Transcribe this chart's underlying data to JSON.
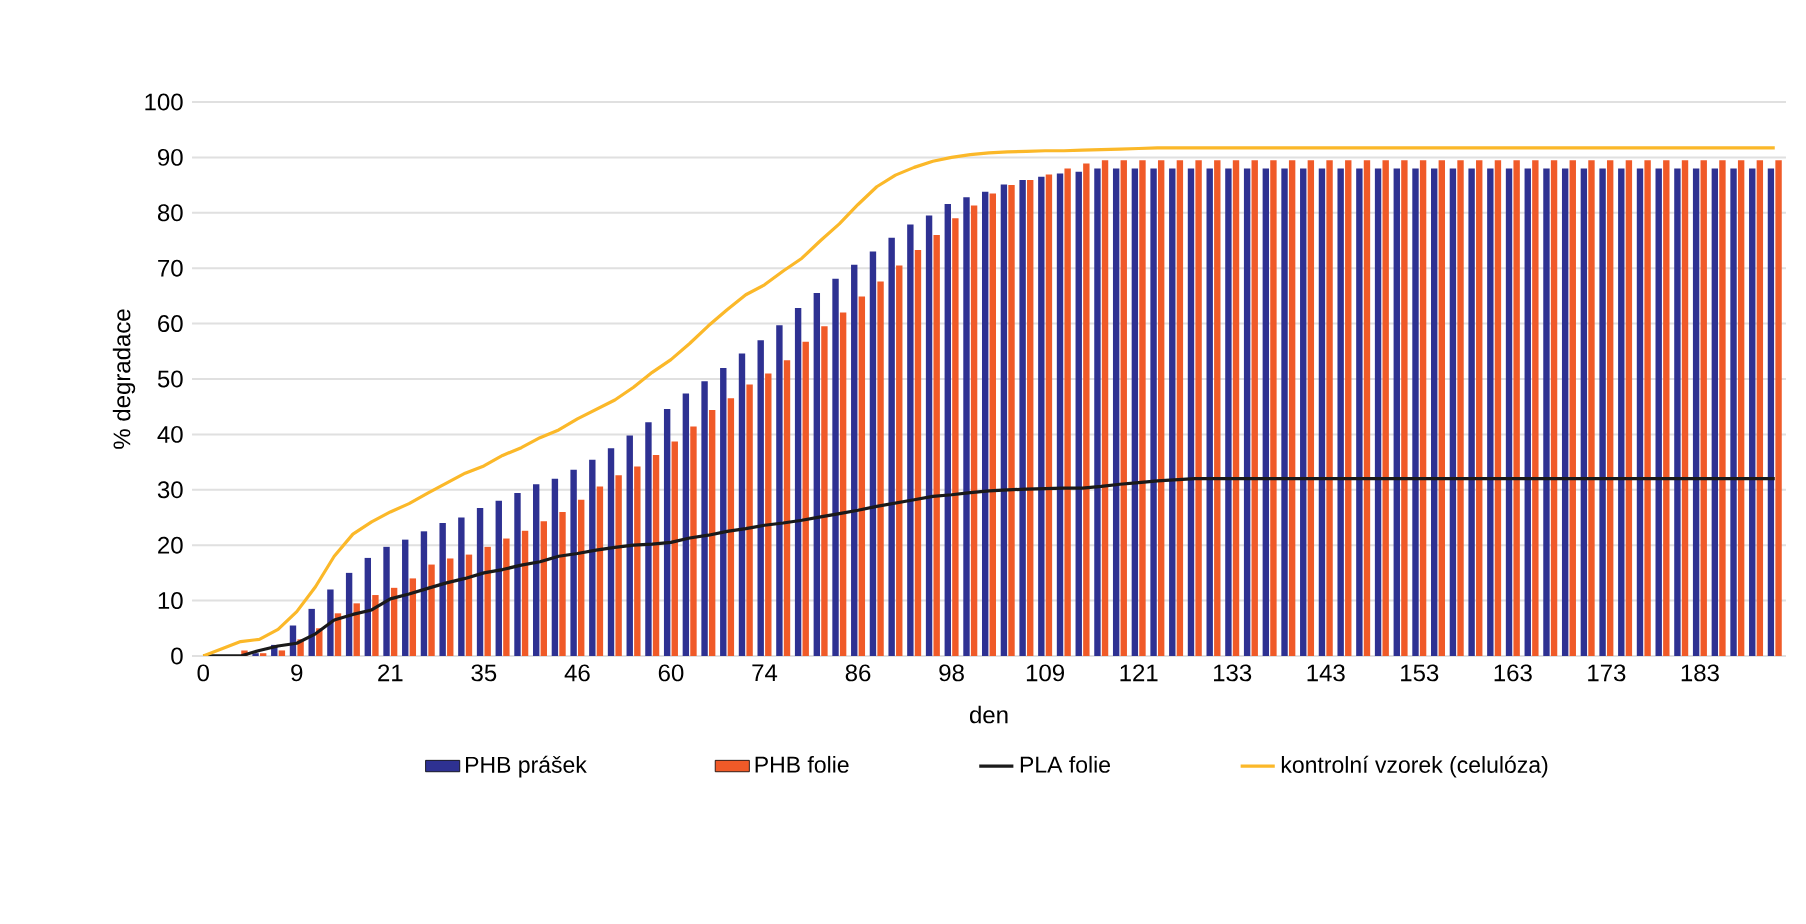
{
  "chart_data": {
    "type": "bar",
    "xlabel": "den",
    "ylabel": "% degradace",
    "categories": [
      "0",
      null,
      null,
      null,
      null,
      "9",
      null,
      null,
      null,
      null,
      "21",
      null,
      null,
      null,
      null,
      "35",
      null,
      null,
      null,
      null,
      "46",
      null,
      null,
      null,
      null,
      "60",
      null,
      null,
      null,
      null,
      "74",
      null,
      null,
      null,
      null,
      "86",
      null,
      null,
      null,
      null,
      "98",
      null,
      null,
      null,
      null,
      "109",
      null,
      null,
      null,
      null,
      "121",
      null,
      null,
      null,
      null,
      "133",
      null,
      null,
      null,
      null,
      "143",
      null,
      null,
      null,
      null,
      "153",
      null,
      null,
      null,
      null,
      "163",
      null,
      null,
      null,
      null,
      "173",
      null,
      null,
      null,
      null,
      "183",
      null,
      null,
      null,
      null
    ],
    "series": [
      {
        "name": "PHB prášek",
        "type": "bar",
        "color": "#2e3192",
        "values": [
          0,
          0,
          null,
          0.5,
          2,
          5.5,
          8.5,
          12,
          15,
          17.7,
          19.7,
          21,
          22.5,
          24,
          25,
          26.7,
          28,
          29.4,
          31,
          32,
          33.6,
          35.4,
          37.5,
          39.8,
          42.2,
          44.6,
          47.4,
          49.6,
          52,
          54.6,
          57,
          59.7,
          62.8,
          65.5,
          68.1,
          70.6,
          73,
          75.5,
          77.9,
          79.5,
          81.6,
          82.8,
          83.8,
          85.1,
          85.9,
          86.5,
          87.1,
          87.4,
          88,
          88,
          88,
          88,
          88,
          88,
          88,
          88,
          88,
          88,
          88,
          88,
          88,
          88,
          88,
          88,
          88,
          88,
          88,
          88,
          88,
          88,
          88,
          88,
          88,
          88,
          88,
          88,
          88,
          88,
          88,
          88,
          88,
          88,
          88,
          88,
          88
        ]
      },
      {
        "name": "PHB folie",
        "type": "bar",
        "color": "#f05a28",
        "values": [
          0,
          0,
          1,
          0.5,
          1,
          3,
          5,
          7.7,
          9.5,
          11,
          12.3,
          14,
          16.5,
          17.6,
          18.3,
          19.7,
          21.2,
          22.6,
          24.3,
          26,
          28.2,
          30.6,
          32.6,
          34.2,
          36.3,
          38.7,
          41.4,
          44.4,
          46.5,
          49,
          51,
          53.4,
          56.7,
          59.5,
          62,
          64.9,
          67.6,
          70.5,
          73.3,
          76,
          79,
          81.3,
          83.5,
          85,
          85.9,
          86.9,
          88,
          88.9,
          89.5,
          89.5,
          89.5,
          89.5,
          89.5,
          89.5,
          89.5,
          89.5,
          89.5,
          89.5,
          89.5,
          89.5,
          89.5,
          89.5,
          89.5,
          89.5,
          89.5,
          89.5,
          89.5,
          89.5,
          89.5,
          89.5,
          89.5,
          89.5,
          89.5,
          89.5,
          89.5,
          89.5,
          89.5,
          89.5,
          89.5,
          89.5,
          89.5,
          89.5,
          89.5,
          89.5,
          89.5
        ]
      },
      {
        "name": "PLA folie",
        "type": "line",
        "color": "#1a1a1a",
        "values": [
          0,
          0,
          0,
          1,
          1.8,
          2.3,
          4,
          6.5,
          7.5,
          8.3,
          10.3,
          11.2,
          12.2,
          13.2,
          14,
          15,
          15.6,
          16.4,
          17,
          18,
          18.5,
          19.1,
          19.6,
          20,
          20.2,
          20.5,
          21.3,
          21.8,
          22.5,
          23,
          23.6,
          24,
          24.5,
          25.1,
          25.7,
          26.3,
          27,
          27.6,
          28.2,
          28.8,
          29.1,
          29.5,
          29.8,
          30,
          30.1,
          30.2,
          30.3,
          30.3,
          30.6,
          31,
          31.3,
          31.6,
          31.8,
          32,
          32,
          32,
          32,
          32,
          32,
          32,
          32,
          32,
          32,
          32,
          32,
          32,
          32,
          32,
          32,
          32,
          32,
          32,
          32,
          32,
          32,
          32,
          32,
          32,
          32,
          32,
          32,
          32,
          32,
          32,
          32
        ]
      },
      {
        "name": "kontrolní vzorek (celulóza)",
        "type": "line",
        "color": "#fbb829",
        "values": [
          0,
          1.3,
          2.6,
          3,
          4.8,
          8,
          12.5,
          18,
          22,
          24.2,
          26,
          27.5,
          29.4,
          31.2,
          33,
          34.3,
          36.2,
          37.6,
          39.4,
          40.8,
          42.8,
          44.5,
          46.2,
          48.5,
          51.2,
          53.5,
          56.4,
          59.6,
          62.5,
          65.2,
          67,
          69.5,
          71.8,
          75,
          78,
          81.5,
          84.7,
          86.8,
          88.2,
          89.3,
          90,
          90.5,
          90.8,
          91,
          91.1,
          91.2,
          91.2,
          91.3,
          91.4,
          91.5,
          91.6,
          91.7,
          91.7,
          91.7,
          91.7,
          91.7,
          91.7,
          91.7,
          91.7,
          91.7,
          91.7,
          91.7,
          91.7,
          91.7,
          91.7,
          91.7,
          91.7,
          91.7,
          91.7,
          91.7,
          91.7,
          91.7,
          91.7,
          91.7,
          91.7,
          91.7,
          91.7,
          91.7,
          91.7,
          91.7,
          91.7,
          91.7,
          91.7,
          91.7,
          91.7
        ]
      }
    ],
    "ylim": [
      0,
      100
    ],
    "yticks": [
      0,
      10,
      20,
      30,
      40,
      50,
      60,
      70,
      80,
      90,
      100
    ],
    "grid": "y",
    "legend": "bottom"
  }
}
